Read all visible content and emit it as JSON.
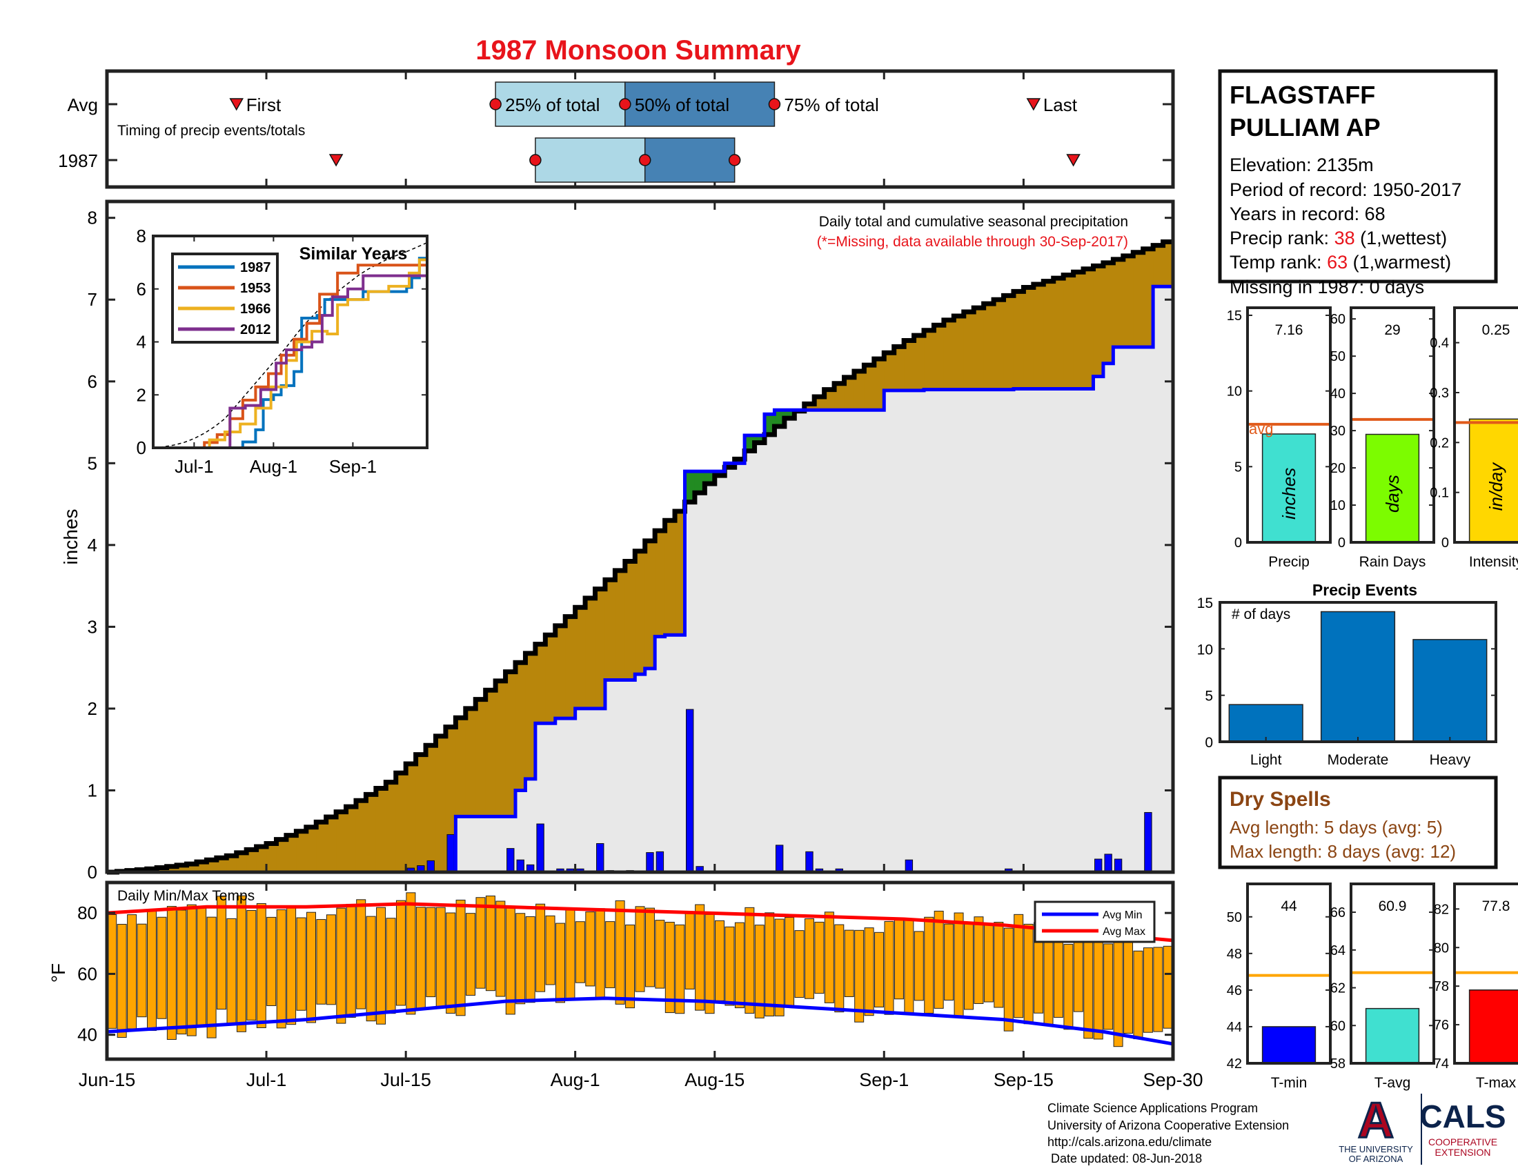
{
  "title": "1987 Monsoon Summary",
  "station": {
    "name_line1": "FLAGSTAFF",
    "name_line2": "PULLIAM AP",
    "elevation": "Elevation: 2135m",
    "period": "Period of record: 1950-2017",
    "years": "Years in record: 68",
    "precip_rank_label": "Precip rank: ",
    "precip_rank_value": "38",
    "precip_rank_suffix": " (1,wettest)",
    "temp_rank_label": "Temp rank: ",
    "temp_rank_value": "63",
    "temp_rank_suffix": " (1,warmest)",
    "missing": "Missing in 1987: 0 days"
  },
  "colors": {
    "title": "#e8141b",
    "rank_value": "#e8141b",
    "cum_fill": "#b8860b",
    "ahead_fill": "#228b22",
    "avg_line": "#0000ff",
    "below_fill": "#e8e8e8",
    "daily_bar": "#0000ff",
    "timing_light": "#add8e6",
    "timing_dark": "#4682b4",
    "temp_bar": "#ffa500",
    "avg_min": "#0000ff",
    "avg_max": "#ff0000",
    "dry_spell": "#8b4513",
    "precip_bar": "#40e0d0",
    "raindays_bar": "#7cfc00",
    "intensity_bar": "#ffd700",
    "stat_avg_line": "#e05a1a",
    "events_bar": "#0072bd",
    "tmin_bar": "#0000ff",
    "tavg_bar": "#40e0d0",
    "tmax_bar": "#ff0000",
    "temp_avg_line": "#ffa500",
    "series_1987": "#0072bd",
    "series_1953": "#d95319",
    "series_1966": "#edb120",
    "series_2012": "#7e2f8e"
  },
  "timing": {
    "row_labels": [
      "Avg",
      "1987"
    ],
    "subtitle": "Timing of precip events/totals",
    "labels": {
      "first": "First",
      "p25": "25% of total",
      "p50": "50% of total",
      "p75": "75% of total",
      "last": "Last"
    },
    "avg": {
      "first": 13,
      "p25": 39,
      "p50": 52,
      "p75": 67,
      "last": 93
    },
    "year": {
      "first": 23,
      "p25": 43,
      "p50": 54,
      "p75": 63,
      "last": 97
    }
  },
  "chart_data": [
    {
      "type": "area",
      "name": "cumulative precipitation",
      "note": "Daily total and cumulative seasonal precipitation",
      "note2": "(*=Missing, data available through 30-Sep-2017)",
      "ylabel": "inches",
      "ylim": [
        0,
        8.2
      ],
      "yticks": [
        0,
        1,
        2,
        3,
        4,
        5,
        6,
        7,
        8
      ],
      "x_range_days": [
        0,
        107
      ],
      "x_ticks": [
        "Jun-15",
        "Jul-1",
        "Jul-15",
        "Aug-1",
        "Aug-15",
        "Sep-1",
        "Sep-15",
        "Sep-30"
      ],
      "x_tick_days": [
        0,
        16,
        30,
        47,
        61,
        78,
        92,
        107
      ],
      "avg_cumulative": {
        "x": [
          0,
          4,
          8,
          12,
          16,
          20,
          24,
          28,
          32,
          36,
          40,
          44,
          48,
          52,
          56,
          60,
          64,
          68,
          72,
          76,
          80,
          84,
          88,
          92,
          96,
          100,
          104,
          107
        ],
        "y": [
          0.0,
          0.04,
          0.1,
          0.2,
          0.35,
          0.55,
          0.8,
          1.1,
          1.55,
          2.0,
          2.45,
          2.9,
          3.35,
          3.8,
          4.3,
          4.75,
          5.15,
          5.55,
          5.9,
          6.2,
          6.5,
          6.75,
          6.95,
          7.15,
          7.3,
          7.45,
          7.62,
          7.75
        ]
      },
      "year_cumulative": {
        "x": [
          0,
          31,
          35,
          35,
          40,
          41,
          42,
          43,
          43,
          45,
          47,
          48,
          50,
          50,
          53,
          54,
          55,
          56,
          56,
          58,
          62,
          62,
          64,
          64,
          66,
          67,
          78,
          81,
          82,
          91,
          99,
          100,
          101,
          104,
          105,
          107
        ],
        "y": [
          0.0,
          0.0,
          0.22,
          0.68,
          0.68,
          1.0,
          1.14,
          1.19,
          1.82,
          1.88,
          2.0,
          2.0,
          2.35,
          2.35,
          2.42,
          2.49,
          2.88,
          2.88,
          2.9,
          4.9,
          4.98,
          5.0,
          5.0,
          5.34,
          5.6,
          5.65,
          5.89,
          5.89,
          5.9,
          5.91,
          6.06,
          6.22,
          6.42,
          6.42,
          7.16,
          7.16
        ]
      },
      "daily": {
        "x": [
          30,
          31,
          32,
          34,
          40,
          41,
          42,
          43,
          45,
          46,
          47,
          49,
          50,
          52,
          54,
          55,
          58,
          59,
          67,
          70,
          71,
          72,
          73,
          80,
          90,
          99,
          100,
          101,
          104
        ],
        "y": [
          0.05,
          0.08,
          0.14,
          0.46,
          0.29,
          0.15,
          0.09,
          0.59,
          0.04,
          0.04,
          0.04,
          0.35,
          0.02,
          0.02,
          0.24,
          0.25,
          1.99,
          0.07,
          0.33,
          0.25,
          0.04,
          0.01,
          0.04,
          0.15,
          0.04,
          0.16,
          0.22,
          0.16,
          0.73
        ]
      }
    },
    {
      "type": "line",
      "name": "Similar Years",
      "title": "Similar Years",
      "ylim": [
        0,
        8
      ],
      "yticks": [
        0,
        2,
        4,
        6,
        8
      ],
      "x_ticks": [
        "Jul-1",
        "Aug-1",
        "Sep-1"
      ],
      "x_tick_days": [
        16,
        47,
        78
      ],
      "x_range_days": [
        0,
        107
      ],
      "series": [
        {
          "name": "1987",
          "x": [
            0,
            31,
            35,
            40,
            43,
            47,
            50,
            55,
            58,
            64,
            67,
            82,
            99,
            101,
            104,
            107
          ],
          "y": [
            0,
            0,
            0.22,
            0.68,
            1.82,
            2.0,
            2.35,
            2.88,
            4.9,
            5.0,
            5.6,
            5.9,
            6.06,
            6.42,
            7.16,
            7.16
          ]
        },
        {
          "name": "1953",
          "x": [
            0,
            20,
            25,
            30,
            35,
            40,
            45,
            50,
            55,
            60,
            65,
            72,
            80,
            90,
            100,
            107
          ],
          "y": [
            0,
            0.2,
            0.5,
            1.1,
            1.8,
            2.3,
            2.8,
            3.5,
            4.1,
            4.7,
            5.8,
            6.6,
            6.9,
            6.9,
            6.9,
            6.9
          ]
        },
        {
          "name": "1966",
          "x": [
            0,
            22,
            28,
            34,
            40,
            46,
            52,
            56,
            62,
            68,
            72,
            76,
            84,
            92,
            100,
            104,
            107
          ],
          "y": [
            0,
            0.3,
            0.6,
            0.9,
            1.5,
            2.3,
            3.3,
            4.0,
            4.4,
            4.3,
            5.4,
            5.6,
            5.9,
            6.1,
            6.6,
            7.1,
            7.4
          ]
        },
        {
          "name": "2012",
          "x": [
            0,
            28,
            30,
            36,
            42,
            48,
            52,
            58,
            62,
            66,
            70,
            76,
            82,
            90,
            100,
            107
          ],
          "y": [
            0,
            0,
            1.5,
            1.6,
            2.2,
            3.2,
            3.7,
            3.8,
            4.0,
            5.0,
            5.7,
            6.0,
            6.5,
            6.5,
            6.5,
            6.5
          ]
        }
      ]
    },
    {
      "type": "bar",
      "name": "Daily Min/Max Temps",
      "title": "Daily Min/Max Temps",
      "ylabel": "°F",
      "ylim": [
        32,
        90
      ],
      "yticks": [
        40,
        60,
        80
      ],
      "legend": [
        "Avg Min",
        "Avg Max"
      ],
      "legend_position": "top-right",
      "x_range_days": [
        0,
        107
      ],
      "avg_min": {
        "x": [
          0,
          10,
          20,
          30,
          40,
          50,
          60,
          70,
          80,
          90,
          100,
          107
        ],
        "y": [
          41,
          43,
          45,
          48,
          51,
          52,
          51,
          49,
          47,
          45,
          41,
          37
        ]
      },
      "avg_max": {
        "x": [
          0,
          10,
          20,
          30,
          40,
          50,
          60,
          70,
          80,
          90,
          100,
          107
        ],
        "y": [
          80,
          82,
          82,
          83,
          82,
          81,
          80,
          79,
          78,
          76,
          73,
          71
        ]
      }
    },
    {
      "type": "bar",
      "name": "Precip",
      "categories": [
        "Precip"
      ],
      "values": [
        7.16
      ],
      "value_label": "7.16",
      "avg": 7.8,
      "avg_label": "avg",
      "bar_text": "inches",
      "ylim": [
        0,
        15.5
      ],
      "yticks": [
        0,
        5,
        10,
        15
      ]
    },
    {
      "type": "bar",
      "name": "Rain Days",
      "categories": [
        "Rain Days"
      ],
      "values": [
        29
      ],
      "value_label": "29",
      "avg": 33,
      "bar_text": "days",
      "ylim": [
        0,
        63
      ],
      "yticks": [
        0,
        10,
        20,
        30,
        40,
        50,
        60
      ]
    },
    {
      "type": "bar",
      "name": "Intensity",
      "categories": [
        "Intensity"
      ],
      "values": [
        0.247
      ],
      "value_label": "0.25",
      "avg": 0.24,
      "bar_text": "in/day",
      "ylim": [
        0,
        0.47
      ],
      "yticks": [
        0,
        0.1,
        0.2,
        0.3,
        0.4
      ]
    },
    {
      "type": "bar",
      "name": "Precip Events",
      "title": "Precip Events",
      "subtitle": "# of days",
      "categories": [
        "Light",
        "Moderate",
        "Heavy"
      ],
      "values": [
        4,
        14,
        11
      ],
      "ylim": [
        0,
        15
      ],
      "yticks": [
        0,
        5,
        10,
        15
      ]
    },
    {
      "type": "bar",
      "name": "T-min",
      "categories": [
        "T-min"
      ],
      "values": [
        44
      ],
      "value_label": "44",
      "avg": 46.8,
      "ylim": [
        42,
        51.8
      ],
      "yticks": [
        42,
        44,
        46,
        48,
        50
      ]
    },
    {
      "type": "bar",
      "name": "T-avg",
      "categories": [
        "T-avg"
      ],
      "values": [
        60.9
      ],
      "value_label": "60.9",
      "avg": 62.8,
      "ylim": [
        58,
        67.5
      ],
      "yticks": [
        58,
        60,
        62,
        64,
        66
      ]
    },
    {
      "type": "bar",
      "name": "T-max",
      "categories": [
        "T-max"
      ],
      "values": [
        77.8
      ],
      "value_label": "77.8",
      "avg": 78.7,
      "ylim": [
        74,
        83.3
      ],
      "yticks": [
        74,
        76,
        78,
        80,
        82
      ]
    }
  ],
  "dry_spells": {
    "title": "Dry Spells",
    "avg_length": "Avg length: 5 days (avg: 5)",
    "max_length": "Max length: 8 days (avg: 12)"
  },
  "footer": {
    "line1": "Climate Science Applications Program",
    "line2": "University of Arizona Cooperative Extension",
    "line3": "http://cals.arizona.edu/climate",
    "line4": " Date updated: 08-Jun-2018"
  },
  "logos": {
    "ua_letter": "A",
    "ua_line1": "THE UNIVERSITY",
    "ua_line2": "OF ARIZONA",
    "cals": "CALS",
    "cals_line1": "COOPERATIVE",
    "cals_line2": "EXTENSION"
  }
}
